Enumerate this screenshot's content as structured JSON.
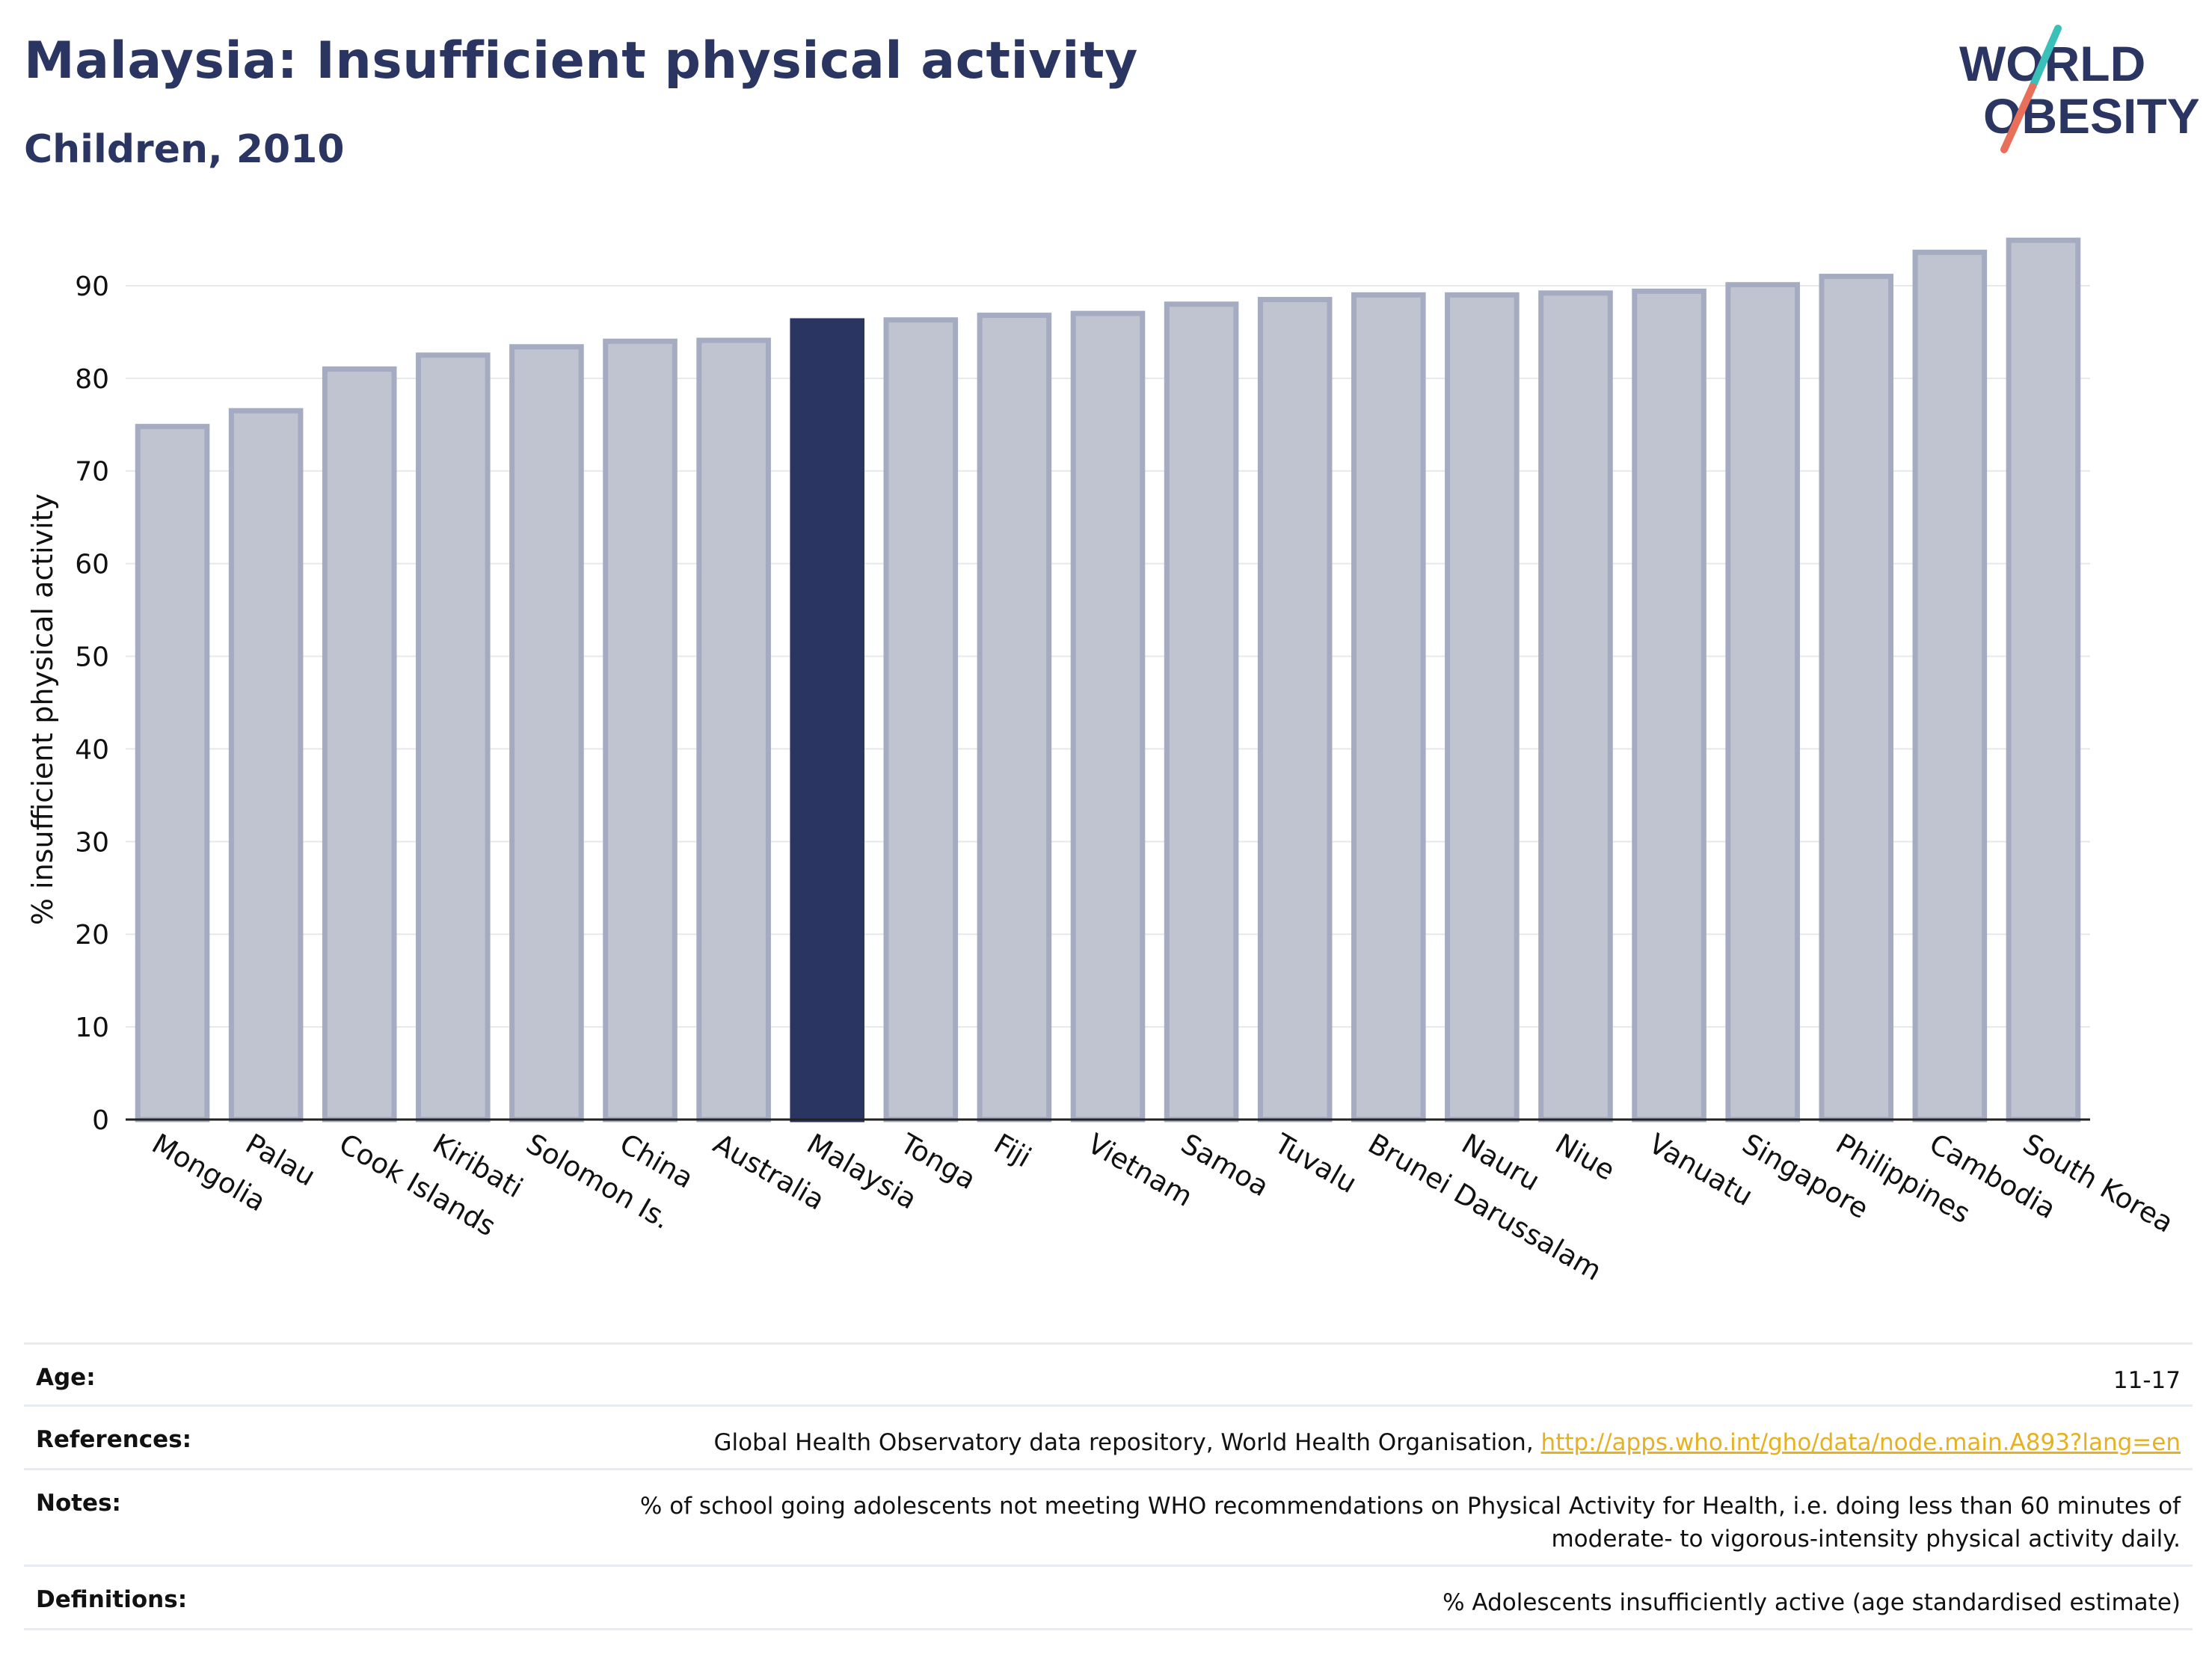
{
  "header": {
    "title": "Malaysia: Insufficient physical activity",
    "subtitle": "Children, 2010",
    "logo_line1": "WORLD",
    "logo_line2": "OBESITY"
  },
  "colors": {
    "highlight": "#2a3562",
    "bar_fill": "#c0c4d1",
    "bar_stroke": "#a5abc0",
    "logo_teal": "#3bbfb9",
    "logo_coral": "#e8705a",
    "link": "#e6b020"
  },
  "chart_data": {
    "type": "bar",
    "ylabel": "% insufficient physical activity",
    "ylim": [
      0,
      95
    ],
    "yticks": [
      0,
      10,
      20,
      30,
      40,
      50,
      60,
      70,
      80,
      90
    ],
    "grid": true,
    "highlight": "Malaysia",
    "categories": [
      "Mongolia",
      "Palau",
      "Cook Islands",
      "Kiribati",
      "Solomon Is.",
      "China",
      "Australia",
      "Malaysia",
      "Tonga",
      "Fiji",
      "Vietnam",
      "Samoa",
      "Tuvalu",
      "Brunei Darussalam",
      "Nauru",
      "Niue",
      "Vanuatu",
      "Singapore",
      "Philippines",
      "Cambodia",
      "South Korea"
    ],
    "values": [
      74.8,
      76.5,
      81.0,
      82.5,
      83.4,
      84.0,
      84.1,
      86.2,
      86.3,
      86.8,
      87.0,
      88.0,
      88.5,
      89.0,
      89.0,
      89.2,
      89.4,
      90.1,
      91.0,
      93.6,
      94.9
    ]
  },
  "footer": {
    "age_label": "Age:",
    "age_value": "11-17",
    "references_label": "References:",
    "references_text": "Global Health Observatory data repository, World Health Organisation, ",
    "references_link": "http://apps.who.int/gho/data/node.main.A893?lang=en",
    "notes_label": "Notes:",
    "notes_line1": "% of school going adolescents not meeting WHO recommendations on Physical Activity for Health, i.e. doing less than 60 minutes of",
    "notes_line2": "moderate- to vigorous-intensity physical activity daily.",
    "definitions_label": "Definitions:",
    "definitions_value": "% Adolescents insufficiently active (age standardised estimate)"
  }
}
